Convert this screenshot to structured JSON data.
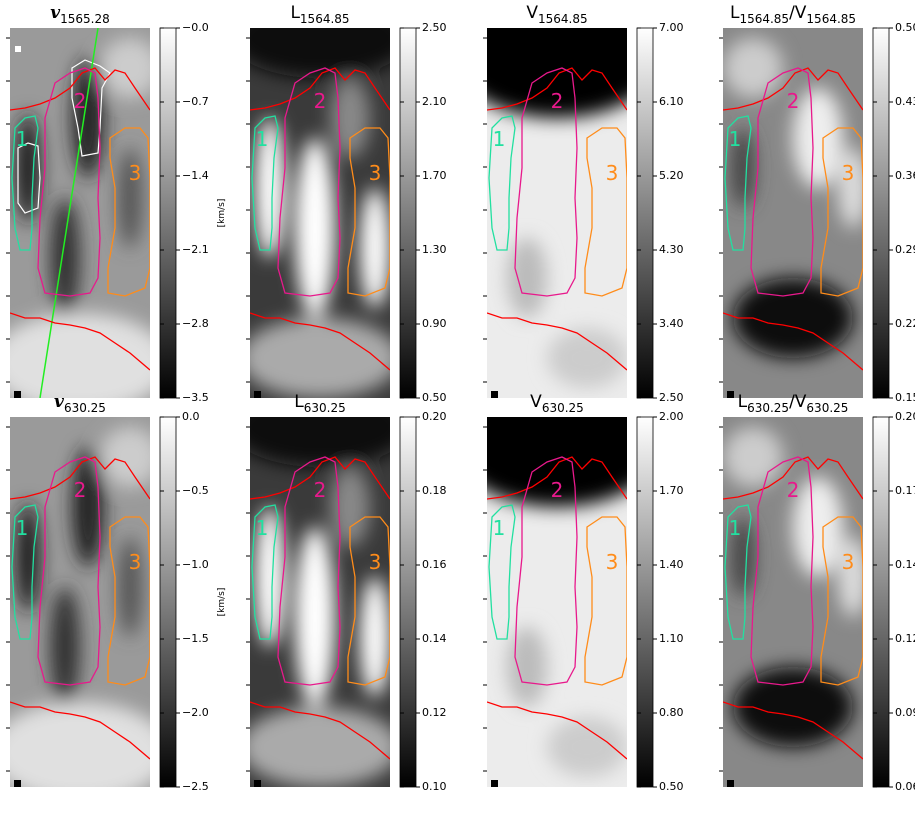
{
  "chart_data": [
    {
      "type": "heatmap",
      "title": [
        "v",
        "1565.28"
      ],
      "colorbar_label": "[km/s]",
      "clim": [
        -3.5,
        0
      ],
      "cticks": [
        {
          "value": 0,
          "label": "−0.0"
        },
        {
          "value": -0.7,
          "label": "−0.7"
        },
        {
          "value": -1.4,
          "label": "−1.4"
        },
        {
          "value": -2.1,
          "label": "−2.1"
        },
        {
          "value": -2.8,
          "label": "−2.8"
        },
        {
          "value": -3.5,
          "label": "−3.5"
        }
      ],
      "contour_labels": [
        "1",
        "2",
        "3"
      ]
    },
    {
      "type": "heatmap",
      "title": [
        "L",
        "1564.85"
      ],
      "clim": [
        0.5,
        2.5
      ],
      "cticks": [
        {
          "value": 2.5,
          "label": "2.50"
        },
        {
          "value": 2.1,
          "label": "2.10"
        },
        {
          "value": 1.7,
          "label": "1.70"
        },
        {
          "value": 1.3,
          "label": "1.30"
        },
        {
          "value": 0.9,
          "label": "0.90"
        },
        {
          "value": 0.5,
          "label": "0.50"
        }
      ],
      "contour_labels": [
        "1",
        "2",
        "3"
      ]
    },
    {
      "type": "heatmap",
      "title": [
        "V",
        "1564.85"
      ],
      "clim": [
        2.5,
        7
      ],
      "cticks": [
        {
          "value": 7,
          "label": "7.00"
        },
        {
          "value": 6.1,
          "label": "6.10"
        },
        {
          "value": 5.2,
          "label": "5.20"
        },
        {
          "value": 4.3,
          "label": "4.30"
        },
        {
          "value": 3.4,
          "label": "3.40"
        },
        {
          "value": 2.5,
          "label": "2.50"
        }
      ],
      "contour_labels": [
        "1",
        "2",
        "3"
      ]
    },
    {
      "type": "heatmap",
      "title": [
        "L",
        "1564.85",
        "/V",
        "1564.85"
      ],
      "clim": [
        0.15,
        0.5
      ],
      "cticks": [
        {
          "value": 0.5,
          "label": "0.50"
        },
        {
          "value": 0.43,
          "label": "0.43"
        },
        {
          "value": 0.36,
          "label": "0.36"
        },
        {
          "value": 0.29,
          "label": "0.29"
        },
        {
          "value": 0.22,
          "label": "0.22"
        },
        {
          "value": 0.15,
          "label": "0.15"
        }
      ],
      "contour_labels": [
        "1",
        "2",
        "3"
      ]
    },
    {
      "type": "heatmap",
      "title": [
        "v",
        "630.25"
      ],
      "colorbar_label": "[km/s]",
      "clim": [
        -2.5,
        0
      ],
      "cticks": [
        {
          "value": 0,
          "label": "0.0"
        },
        {
          "value": -0.5,
          "label": "−0.5"
        },
        {
          "value": -1,
          "label": "−1.0"
        },
        {
          "value": -1.5,
          "label": "−1.5"
        },
        {
          "value": -2,
          "label": "−2.0"
        },
        {
          "value": -2.5,
          "label": "−2.5"
        }
      ],
      "contour_labels": [
        "1",
        "2",
        "3"
      ]
    },
    {
      "type": "heatmap",
      "title": [
        "L",
        "630.25"
      ],
      "clim": [
        0.1,
        0.2
      ],
      "cticks": [
        {
          "value": 0.2,
          "label": "0.20"
        },
        {
          "value": 0.18,
          "label": "0.18"
        },
        {
          "value": 0.16,
          "label": "0.16"
        },
        {
          "value": 0.14,
          "label": "0.14"
        },
        {
          "value": 0.12,
          "label": "0.12"
        },
        {
          "value": 0.1,
          "label": "0.10"
        }
      ],
      "contour_labels": [
        "1",
        "2",
        "3"
      ]
    },
    {
      "type": "heatmap",
      "title": [
        "V",
        "630.25"
      ],
      "clim": [
        0.5,
        2
      ],
      "cticks": [
        {
          "value": 2,
          "label": "2.00"
        },
        {
          "value": 1.7,
          "label": "1.70"
        },
        {
          "value": 1.4,
          "label": "1.40"
        },
        {
          "value": 1.1,
          "label": "1.10"
        },
        {
          "value": 0.8,
          "label": "0.80"
        },
        {
          "value": 0.5,
          "label": "0.50"
        }
      ],
      "contour_labels": [
        "1",
        "2",
        "3"
      ]
    },
    {
      "type": "heatmap",
      "title": [
        "L",
        "630.25",
        "/V",
        "630.25"
      ],
      "clim": [
        0.06,
        0.2
      ],
      "cticks": [
        {
          "value": 0.2,
          "label": "0.20"
        },
        {
          "value": 0.172,
          "label": "0.17"
        },
        {
          "value": 0.144,
          "label": "0.14"
        },
        {
          "value": 0.116,
          "label": "0.12"
        },
        {
          "value": 0.088,
          "label": "0.09"
        },
        {
          "value": 0.06,
          "label": "0.06"
        }
      ],
      "contour_labels": [
        "1",
        "2",
        "3"
      ]
    }
  ]
}
